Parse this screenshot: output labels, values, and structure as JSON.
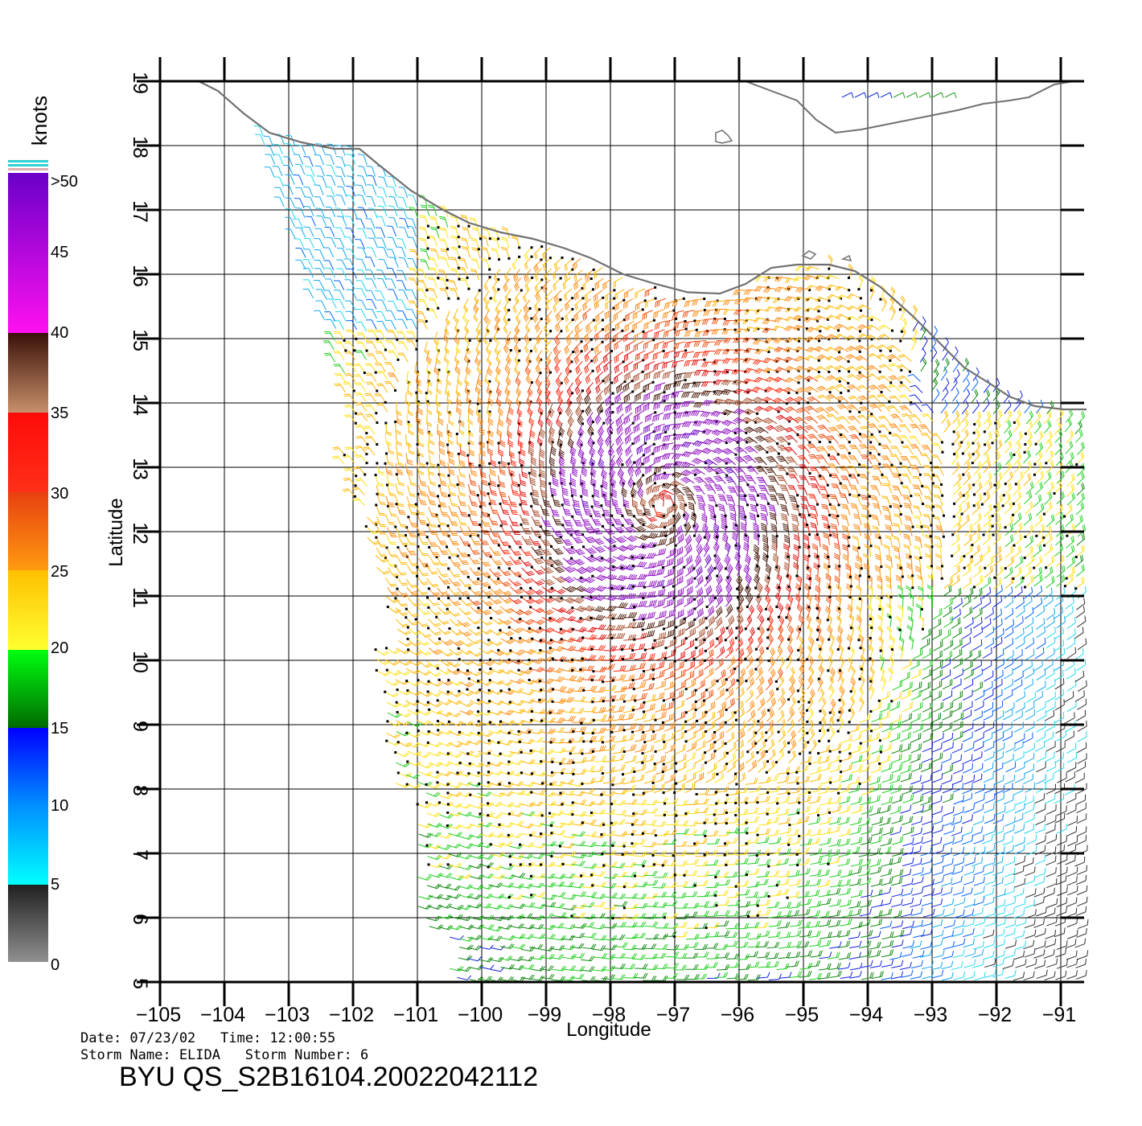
{
  "colorbar": {
    "unit": "knots",
    "labels": [
      ">50",
      "45",
      "40",
      "35",
      "30",
      "25",
      "20",
      "15",
      "10",
      "5",
      "0"
    ],
    "bands": [
      {
        "from": 50,
        "to": 40,
        "top": "#6a00c8",
        "bottom": "#ff10f0"
      },
      {
        "from": 40,
        "to": 35,
        "top": "#3a1008",
        "bottom": "#c8906a"
      },
      {
        "from": 35,
        "to": 30,
        "top": "#ff0a0a",
        "bottom": "#ff3018"
      },
      {
        "from": 30,
        "to": 25,
        "top": "#e84010",
        "bottom": "#ff9a10"
      },
      {
        "from": 25,
        "to": 20,
        "top": "#ffc000",
        "bottom": "#ffff30"
      },
      {
        "from": 20,
        "to": 15,
        "top": "#00ff10",
        "bottom": "#006a00"
      },
      {
        "from": 15,
        "to": 10,
        "top": "#0000ff",
        "bottom": "#0090ff"
      },
      {
        "from": 10,
        "to": 5,
        "top": "#0090ff",
        "bottom": "#00ffff"
      },
      {
        "from": 5,
        "to": 0,
        "top": "#202020",
        "bottom": "#909090"
      }
    ]
  },
  "axes": {
    "x_label": "Longitude",
    "y_label": "Latitude",
    "lon_range": [
      -105,
      -90.6
    ],
    "lat_range": [
      5,
      19
    ],
    "lon_ticks": [
      "−105",
      "−104",
      "−103",
      "−102",
      "−101",
      "−100",
      "−99",
      "−98",
      "−97",
      "−96",
      "−95",
      "−94",
      "−93",
      "−92",
      "−91"
    ],
    "lat_ticks": [
      "19",
      "18",
      "17",
      "16",
      "15",
      "14",
      "13",
      "12",
      "11",
      "10",
      "9",
      "8",
      "7",
      "6",
      "5"
    ],
    "grid": true
  },
  "coastline": {
    "color": "#707070",
    "mainland": [
      [
        -104.4,
        19.0
      ],
      [
        -104.1,
        18.85
      ],
      [
        -103.7,
        18.5
      ],
      [
        -103.3,
        18.2
      ],
      [
        -102.8,
        18.05
      ],
      [
        -102.3,
        17.95
      ],
      [
        -101.9,
        17.95
      ],
      [
        -101.6,
        17.7
      ],
      [
        -101.1,
        17.3
      ],
      [
        -100.6,
        17.0
      ],
      [
        -100.2,
        16.8
      ],
      [
        -99.7,
        16.65
      ],
      [
        -99.2,
        16.55
      ],
      [
        -98.7,
        16.4
      ],
      [
        -98.3,
        16.25
      ],
      [
        -97.8,
        16.0
      ],
      [
        -97.3,
        15.85
      ],
      [
        -96.8,
        15.72
      ],
      [
        -96.3,
        15.7
      ],
      [
        -95.9,
        15.85
      ],
      [
        -95.5,
        16.1
      ],
      [
        -95.1,
        16.15
      ],
      [
        -94.6,
        16.15
      ],
      [
        -94.2,
        16.05
      ],
      [
        -93.8,
        15.8
      ],
      [
        -93.3,
        15.35
      ],
      [
        -92.9,
        14.95
      ],
      [
        -92.5,
        14.55
      ],
      [
        -92.1,
        14.3
      ],
      [
        -91.8,
        14.1
      ],
      [
        -91.4,
        13.95
      ],
      [
        -90.95,
        13.9
      ],
      [
        -90.6,
        13.9
      ]
    ],
    "north_coast": [
      [
        -95.9,
        19.0
      ],
      [
        -95.5,
        18.85
      ],
      [
        -95.1,
        18.7
      ],
      [
        -94.8,
        18.4
      ],
      [
        -94.5,
        18.2
      ],
      [
        -94.1,
        18.25
      ],
      [
        -93.6,
        18.35
      ],
      [
        -93.1,
        18.45
      ],
      [
        -92.6,
        18.55
      ],
      [
        -92.2,
        18.65
      ],
      [
        -91.8,
        18.7
      ],
      [
        -91.5,
        18.75
      ],
      [
        -91.1,
        18.95
      ],
      [
        -90.8,
        19.0
      ]
    ]
  },
  "wind_field": {
    "description": "QuikSCAT SeaWinds ocean vector winds with barbs colored by speed",
    "has_rain_flags": true
  },
  "footer": {
    "date_line": "Date: 07/23/02   Time: 12:00:55",
    "storm_line": "Storm Name: ELIDA   Storm Number: 6",
    "file_title": "BYU QS_S2B16104.20022042112"
  }
}
